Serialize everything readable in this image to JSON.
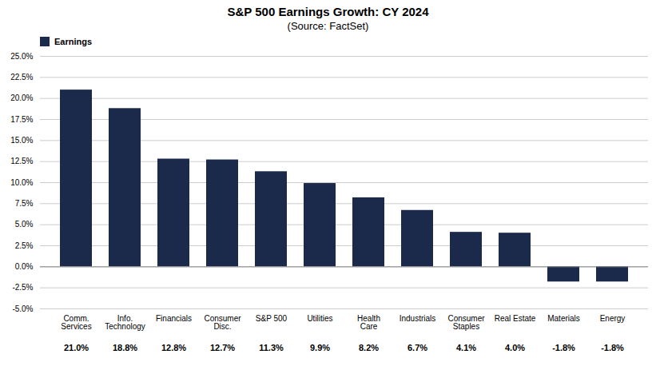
{
  "chart_data": {
    "type": "bar",
    "title": "S&P 500 Earnings Growth: CY 2024",
    "subtitle": "(Source: FactSet)",
    "categories": [
      "Comm.\nServices",
      "Info.\nTechnology",
      "Financials",
      "Consumer\nDisc.",
      "S&P 500",
      "Utilities",
      "Health\nCare",
      "Industrials",
      "Consumer\nStaples",
      "Real Estate",
      "Materials",
      "Energy"
    ],
    "series": [
      {
        "name": "Earnings",
        "color": "#1b2a4a",
        "values": [
          21.0,
          18.8,
          12.8,
          12.7,
          11.3,
          9.9,
          8.2,
          6.7,
          4.1,
          4.0,
          -1.8,
          -1.8
        ]
      }
    ],
    "value_labels": [
      "21.0%",
      "18.8%",
      "12.8%",
      "12.7%",
      "11.3%",
      "9.9%",
      "8.2%",
      "6.7%",
      "4.1%",
      "4.0%",
      "-1.8%",
      "-1.8%"
    ],
    "data_labels": true,
    "ylim": [
      -5.0,
      25.0
    ],
    "yticks": [
      {
        "value": -5.0,
        "label": "-5.0%"
      },
      {
        "value": -2.5,
        "label": "-2.5%"
      },
      {
        "value": 0.0,
        "label": "0.0%"
      },
      {
        "value": 2.5,
        "label": "2.5%"
      },
      {
        "value": 5.0,
        "label": "5.0%"
      },
      {
        "value": 7.5,
        "label": "7.5%"
      },
      {
        "value": 10.0,
        "label": "10.0%"
      },
      {
        "value": 12.5,
        "label": "12.5%"
      },
      {
        "value": 15.0,
        "label": "15.0%"
      },
      {
        "value": 17.5,
        "label": "17.5%"
      },
      {
        "value": 20.0,
        "label": "20.0%"
      },
      {
        "value": 22.5,
        "label": "22.5%"
      },
      {
        "value": 25.0,
        "label": "25.0%"
      }
    ],
    "grid": true
  }
}
